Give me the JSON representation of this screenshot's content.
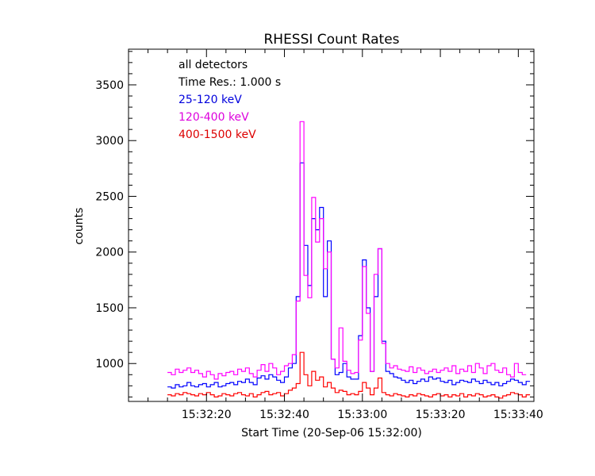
{
  "chart_data": {
    "type": "line",
    "title": "RHESSI Count Rates",
    "xlabel": "Start Time (20-Sep-06 15:32:00)",
    "ylabel": "counts",
    "xlim": [
      0,
      104
    ],
    "ylim": [
      660,
      3820
    ],
    "x_ticks": [
      {
        "t": 20,
        "label": "15:32:20"
      },
      {
        "t": 40,
        "label": "15:32:40"
      },
      {
        "t": 60,
        "label": "15:33:00"
      },
      {
        "t": 80,
        "label": "15:33:20"
      },
      {
        "t": 100,
        "label": "15:33:40"
      }
    ],
    "x_minor_ticks": [
      5,
      10,
      15,
      25,
      30,
      35,
      45,
      50,
      55,
      65,
      70,
      75,
      85,
      90,
      95
    ],
    "y_ticks": [
      {
        "v": 1000,
        "label": "1000"
      },
      {
        "v": 1500,
        "label": "1500"
      },
      {
        "v": 2000,
        "label": "2000"
      },
      {
        "v": 2500,
        "label": "2500"
      },
      {
        "v": 3000,
        "label": "3000"
      },
      {
        "v": 3500,
        "label": "3500"
      }
    ],
    "y_minor_step": 100,
    "annotations": [
      "all detectors",
      "Time Res.: 1.000 s"
    ],
    "x_start": 10,
    "step": 1,
    "series": [
      {
        "name": "25-120 keV",
        "color": "#0000ff",
        "values": [
          790,
          780,
          810,
          790,
          800,
          830,
          800,
          790,
          810,
          820,
          790,
          810,
          830,
          790,
          800,
          820,
          830,
          810,
          840,
          830,
          860,
          830,
          810,
          870,
          890,
          860,
          900,
          880,
          850,
          830,
          880,
          960,
          1000,
          1600,
          2800,
          2060,
          1700,
          2300,
          2200,
          2400,
          1600,
          2100,
          1040,
          900,
          920,
          1000,
          880,
          860,
          860,
          1250,
          1930,
          1500,
          930,
          1600,
          2030,
          1200,
          930,
          910,
          880,
          870,
          850,
          830,
          850,
          820,
          840,
          860,
          840,
          880,
          860,
          870,
          840,
          830,
          850,
          810,
          830,
          850,
          840,
          830,
          860,
          840,
          820,
          850,
          830,
          810,
          830,
          800,
          820,
          840,
          860,
          850,
          830,
          810,
          840
        ],
        "label_color": "#0000dd"
      },
      {
        "name": "120-400 keV",
        "color": "#ff00ff",
        "values": [
          920,
          900,
          950,
          920,
          940,
          960,
          920,
          940,
          910,
          880,
          930,
          900,
          860,
          910,
          890,
          920,
          930,
          900,
          950,
          930,
          960,
          910,
          880,
          940,
          990,
          930,
          1000,
          960,
          900,
          930,
          980,
          1000,
          1080,
          1560,
          3170,
          1790,
          1590,
          2490,
          2090,
          2300,
          1850,
          2000,
          1040,
          960,
          1320,
          1020,
          940,
          910,
          920,
          1210,
          1870,
          1450,
          930,
          1800,
          2030,
          1180,
          1000,
          960,
          980,
          950,
          940,
          930,
          970,
          920,
          960,
          940,
          910,
          930,
          950,
          920,
          940,
          960,
          930,
          980,
          910,
          950,
          930,
          980,
          920,
          1000,
          960,
          910,
          980,
          1000,
          940,
          920,
          960,
          900,
          880,
          1000,
          920,
          900
        ],
        "label_color": "#dd00dd"
      },
      {
        "name": "400-1500 keV",
        "color": "#ff0000",
        "values": [
          720,
          710,
          730,
          720,
          740,
          730,
          720,
          710,
          730,
          720,
          740,
          720,
          700,
          710,
          730,
          720,
          710,
          730,
          740,
          720,
          710,
          730,
          700,
          720,
          740,
          750,
          720,
          730,
          740,
          710,
          730,
          760,
          780,
          820,
          1100,
          900,
          800,
          930,
          850,
          880,
          790,
          830,
          780,
          740,
          760,
          750,
          720,
          730,
          720,
          750,
          830,
          780,
          720,
          780,
          870,
          740,
          720,
          710,
          730,
          720,
          710,
          700,
          720,
          710,
          730,
          720,
          710,
          700,
          720,
          730,
          710,
          720,
          700,
          720,
          710,
          730,
          700,
          720,
          710,
          730,
          720,
          700,
          710,
          720,
          700,
          690,
          710,
          720,
          740,
          730,
          720,
          700,
          720
        ],
        "label_color": "#dd0000"
      }
    ]
  }
}
